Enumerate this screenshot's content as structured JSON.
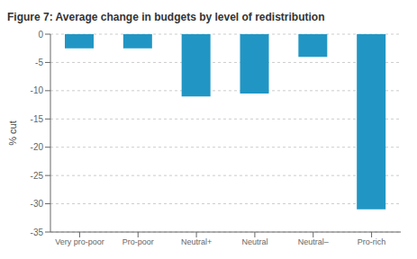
{
  "chart_data": {
    "type": "bar",
    "title": "Figure 7: Average change in budgets by level of redistribution",
    "ylabel": "% cut",
    "categories": [
      "Very pro-poor",
      "Pro-poor",
      "Neutral+",
      "Neutral",
      "Neutral–",
      "Pro-rich"
    ],
    "values": [
      -2.5,
      -2.5,
      -11.0,
      -10.5,
      -4.0,
      -31.0
    ],
    "color": "#2196C4",
    "ylim": [
      -35,
      0
    ],
    "yticks": [
      0,
      -5,
      -10,
      -15,
      -20,
      -25,
      -30,
      -35
    ],
    "grid": true
  }
}
